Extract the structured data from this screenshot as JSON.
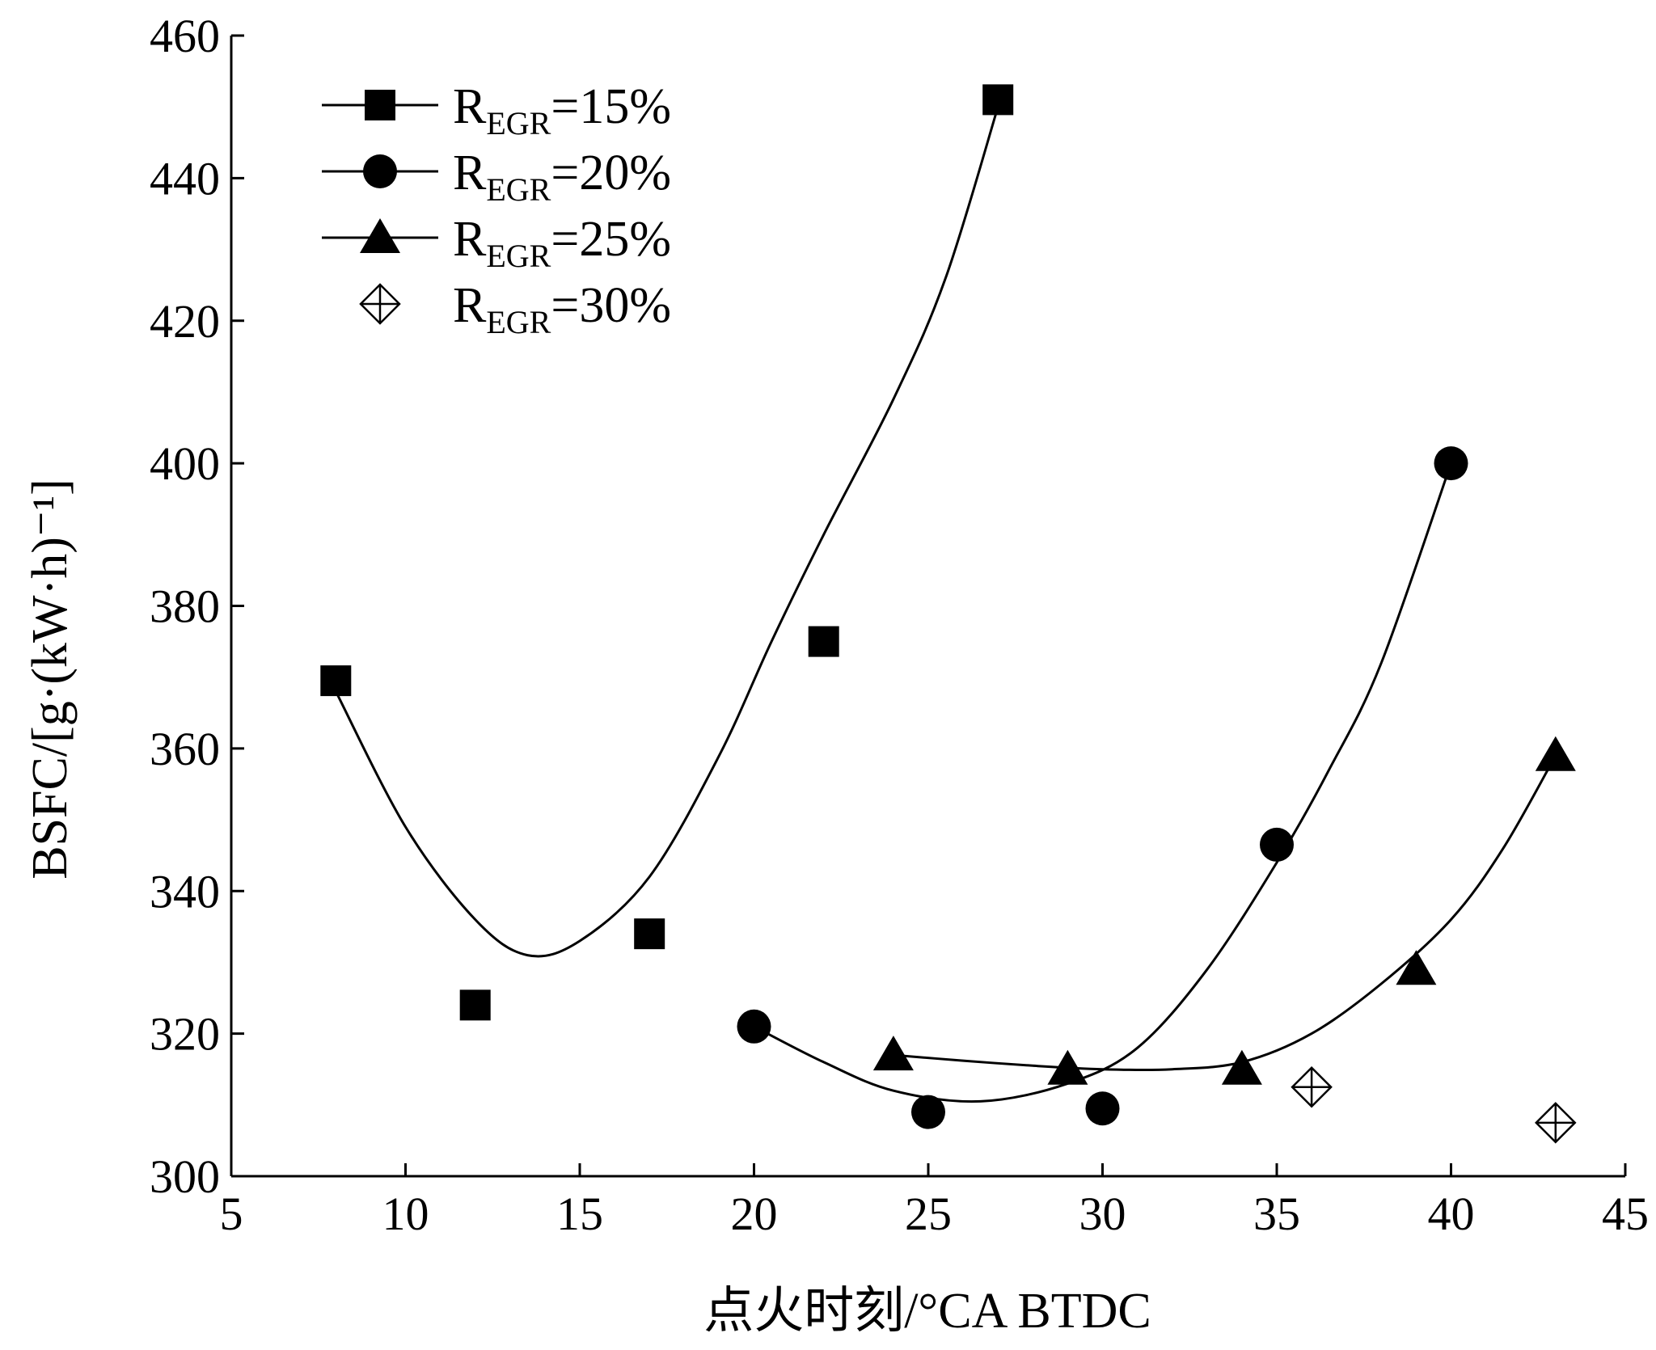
{
  "chart_data": {
    "type": "scatter",
    "xlabel": "点火时刻/°CA BTDC",
    "ylabel": "BSFC/[g·(kW·h)⁻¹]",
    "xlim": [
      5,
      45
    ],
    "ylim": [
      300,
      460
    ],
    "x_ticks": [
      5,
      10,
      15,
      20,
      25,
      30,
      35,
      40,
      45
    ],
    "y_ticks": [
      300,
      320,
      340,
      360,
      380,
      400,
      420,
      440,
      460
    ],
    "grid": false,
    "legend_position": "top-left",
    "series": [
      {
        "name": "R_EGR=15%",
        "legend_main": "R",
        "legend_sub": "EGR",
        "legend_tail": "=15%",
        "marker": "square",
        "x": [
          8,
          12,
          17,
          22,
          27
        ],
        "y": [
          369.5,
          324,
          334,
          375,
          451
        ],
        "fit_curve": [
          [
            8,
            368
          ],
          [
            10,
            349
          ],
          [
            12,
            336
          ],
          [
            13.5,
            331
          ],
          [
            15,
            333
          ],
          [
            17,
            342
          ],
          [
            19,
            359
          ],
          [
            20.5,
            375
          ],
          [
            22,
            390
          ],
          [
            24,
            409
          ],
          [
            25.5,
            426
          ],
          [
            27,
            450
          ]
        ]
      },
      {
        "name": "R_EGR=20%",
        "legend_main": "R",
        "legend_sub": "EGR",
        "legend_tail": "=20%",
        "marker": "circle",
        "x": [
          20,
          25,
          30,
          35,
          40
        ],
        "y": [
          321,
          309,
          309.5,
          346.5,
          400
        ],
        "fit_curve": [
          [
            20,
            321
          ],
          [
            22,
            316
          ],
          [
            24,
            312
          ],
          [
            26.5,
            310.5
          ],
          [
            29,
            313
          ],
          [
            31,
            318
          ],
          [
            33,
            329
          ],
          [
            35,
            344
          ],
          [
            36.5,
            357
          ],
          [
            38,
            372
          ],
          [
            40,
            400
          ]
        ]
      },
      {
        "name": "R_EGR=25%",
        "legend_main": "R",
        "legend_sub": "EGR",
        "legend_tail": "=25%",
        "marker": "triangle",
        "x": [
          24,
          29,
          34,
          39,
          43
        ],
        "y": [
          317,
          315,
          315,
          329,
          359
        ],
        "fit_curve": [
          [
            24,
            317
          ],
          [
            26,
            316.2
          ],
          [
            28,
            315.5
          ],
          [
            30,
            315
          ],
          [
            32,
            315
          ],
          [
            34,
            316
          ],
          [
            36,
            320
          ],
          [
            38,
            327
          ],
          [
            40,
            336
          ],
          [
            41.5,
            346
          ],
          [
            43,
            359
          ]
        ]
      },
      {
        "name": "R_EGR=30%",
        "legend_main": "R",
        "legend_sub": "EGR",
        "legend_tail": "=30%",
        "marker": "diamond-cross",
        "x": [
          36,
          43
        ],
        "y": [
          312.5,
          307.5
        ],
        "fit_curve": []
      }
    ]
  }
}
